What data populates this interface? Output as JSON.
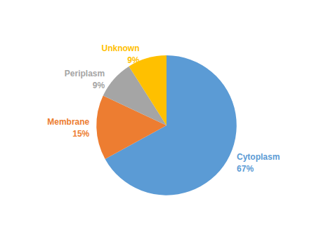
{
  "chart_data": {
    "type": "pie",
    "categories": [
      "Cytoplasm",
      "Membrane",
      "Periplasm",
      "Unknown"
    ],
    "values": [
      67,
      15,
      9,
      9
    ],
    "value_labels": [
      "67%",
      "15%",
      "9%",
      "9%"
    ],
    "colors": [
      "#5B9BD5",
      "#ED7D31",
      "#A5A5A5",
      "#FFC000"
    ],
    "data_labels": true
  }
}
